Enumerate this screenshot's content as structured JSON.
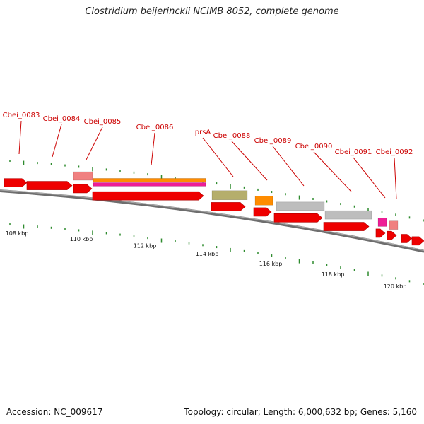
{
  "title": "Clostridium beijerinckii NCIMB 8052, complete genome",
  "footer": {
    "accession": "Accession: NC_009617",
    "summary": "Topology: circular; Length: 6,000,632 bp; Genes: 5,160"
  },
  "gene_labels": [
    "Cbei_0083",
    "Cbei_0084",
    "Cbei_0085",
    "Cbei_0086",
    "prsA",
    "Cbei_0088",
    "Cbei_0089",
    "Cbei_0090",
    "Cbei_0091",
    "Cbei_0092"
  ],
  "scale_labels": [
    "108 kbp",
    "110 kbp",
    "112 kbp",
    "114 kbp",
    "116 kbp",
    "118 kbp",
    "120 kbp"
  ],
  "colors": {
    "gene": "#ee0000",
    "backbone": "#8a8a8a",
    "ticks": "#2e8b2e",
    "label": "#cc0000",
    "orange": "#ff8c00",
    "magenta": "#ee1e96",
    "pink": "#f08080",
    "olive": "#b5ae6c",
    "gray": "#bdbdbd"
  }
}
